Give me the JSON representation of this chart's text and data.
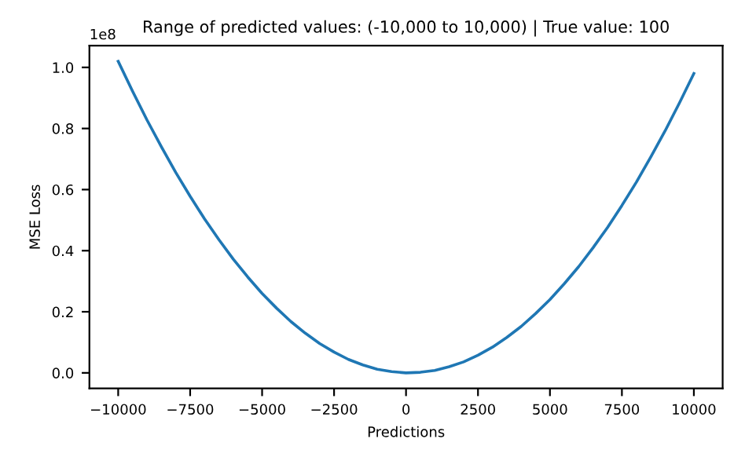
{
  "chart_data": {
    "type": "line",
    "title": "Range of predicted values: (-10,000 to 10,000) | True value: 100",
    "xlabel": "Predictions",
    "ylabel": "MSE Loss",
    "x": [
      -10000,
      -9500,
      -9000,
      -8500,
      -8000,
      -7500,
      -7000,
      -6500,
      -6000,
      -5500,
      -5000,
      -4500,
      -4000,
      -3500,
      -3000,
      -2500,
      -2000,
      -1500,
      -1000,
      -500,
      0,
      500,
      1000,
      1500,
      2000,
      2500,
      3000,
      3500,
      4000,
      4500,
      5000,
      5500,
      6000,
      6500,
      7000,
      7500,
      8000,
      8500,
      9000,
      9500,
      10000
    ],
    "series": [
      {
        "color": "#1f77b4",
        "values": [
          1.02,
          0.922,
          0.828,
          0.74,
          0.656,
          0.578,
          0.504,
          0.436,
          0.372,
          0.314,
          0.26,
          0.212,
          0.168,
          0.13,
          0.096,
          0.068,
          0.044,
          0.026,
          0.012,
          0.004,
          0.0,
          0.002,
          0.008,
          0.02,
          0.036,
          0.058,
          0.084,
          0.116,
          0.152,
          0.194,
          0.24,
          0.292,
          0.348,
          0.41,
          0.476,
          0.548,
          0.624,
          0.706,
          0.792,
          0.884,
          0.98
        ]
      }
    ],
    "xlim": [
      -11000,
      11000
    ],
    "ylim": [
      -0.051,
      1.071
    ],
    "xticks": [
      {
        "value": -10000,
        "label": "−10000"
      },
      {
        "value": -7500,
        "label": "−7500"
      },
      {
        "value": -5000,
        "label": "−5000"
      },
      {
        "value": -2500,
        "label": "−2500"
      },
      0,
      2500,
      5000,
      7500,
      10000
    ],
    "yticks": [
      {
        "value": 0,
        "label": "0.0"
      },
      0.2,
      0.4,
      0.6,
      0.8,
      {
        "value": 1,
        "label": "1.0"
      }
    ],
    "annotations": [
      "1e8"
    ],
    "grid": false,
    "legend": false,
    "marker": "none",
    "line_style": "solid"
  }
}
